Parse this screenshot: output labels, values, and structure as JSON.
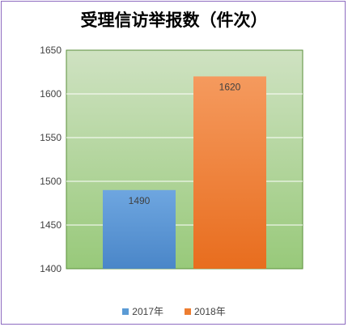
{
  "chart_data": {
    "type": "bar",
    "title": "受理信访举报数（件次）",
    "categories": [
      "2017年",
      "2018年"
    ],
    "values": [
      1490,
      1620
    ],
    "data_labels": [
      "1490",
      "1620"
    ],
    "ylim": [
      1400,
      1650
    ],
    "yticks": [
      "1400",
      "1450",
      "1500",
      "1550",
      "1600",
      "1650"
    ],
    "grid": true,
    "legend_position": "bottom",
    "legend": [
      "2017年",
      "2018年"
    ],
    "colors": {
      "bar_2017_top": "#6ea6e0",
      "bar_2017_bottom": "#4a86c8",
      "bar_2018_top": "#f59a5e",
      "bar_2018_bottom": "#e86d1e",
      "plot_bg_top": "#cfe2c2",
      "plot_bg_bottom": "#98c97a",
      "plot_border": "#5a8f3a",
      "legend_2017": "#5b9bd5",
      "legend_2018": "#ed7d31"
    }
  }
}
